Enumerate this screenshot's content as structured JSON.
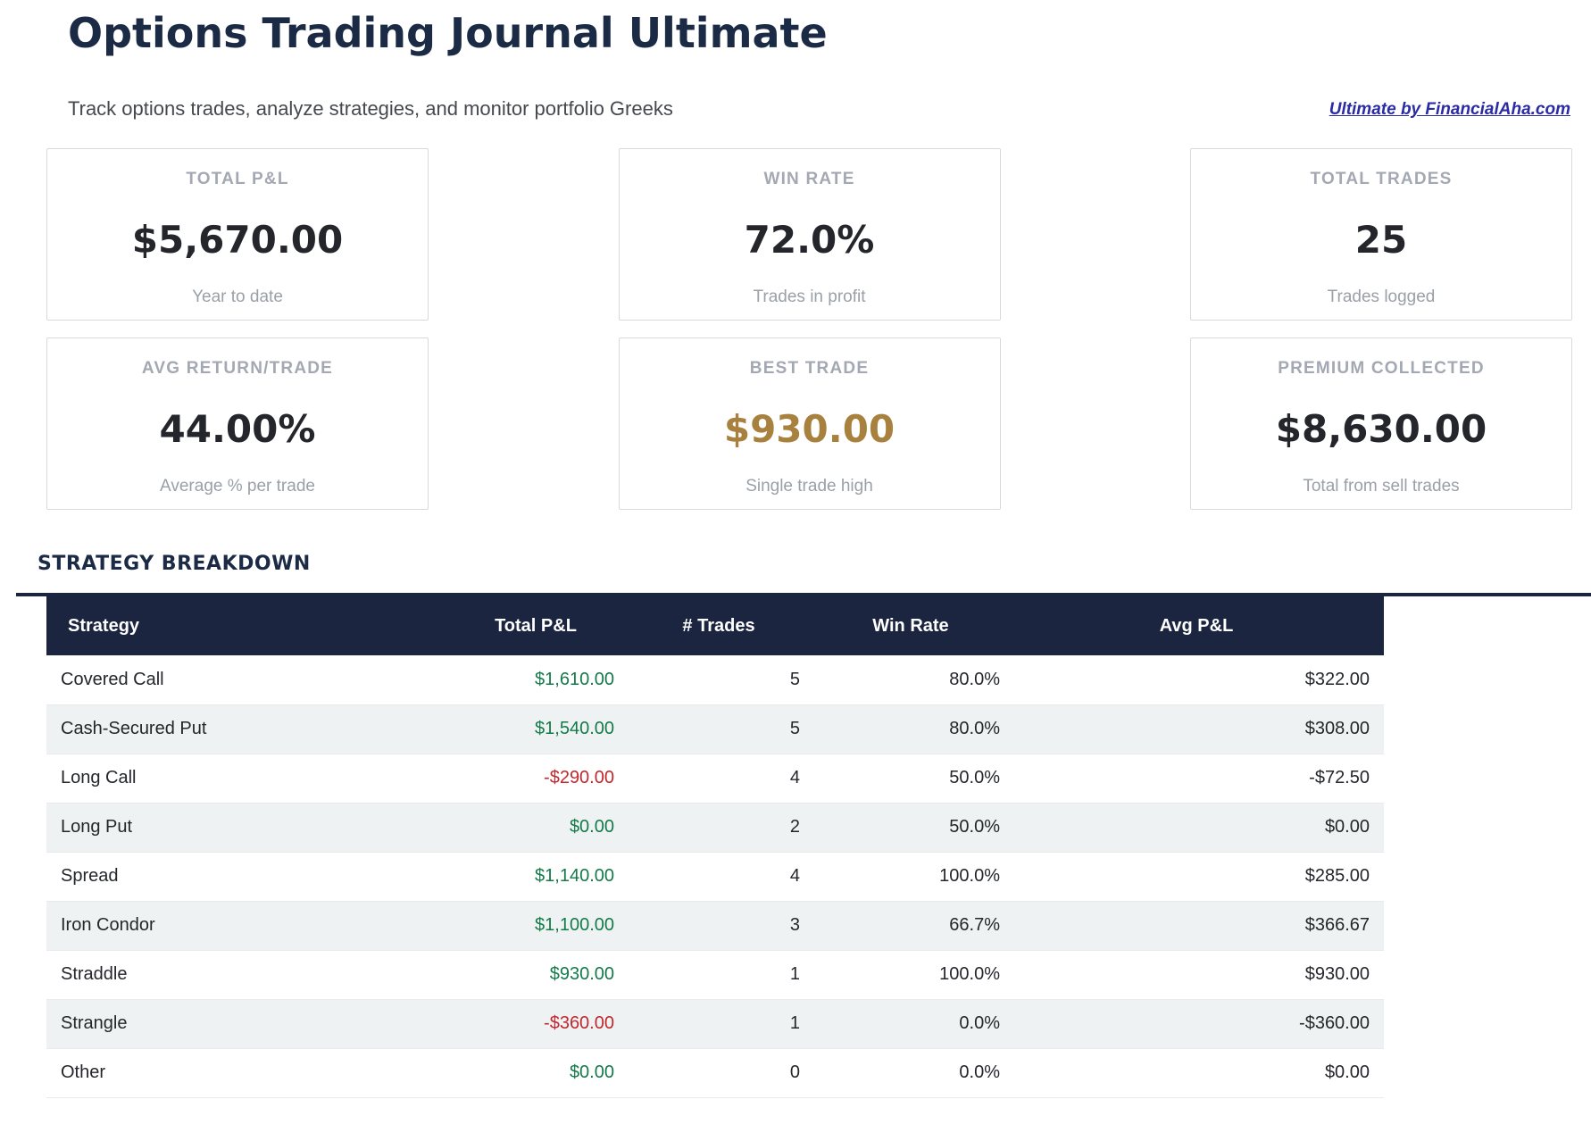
{
  "colors": {
    "navy": "#1b2540",
    "title_navy": "#1c2b45",
    "subtitle_gray": "#45494f",
    "link_blue": "#2b2ba3",
    "gold": "#a8813f",
    "green": "#147a4a",
    "red": "#c0282d",
    "row_alt": "#eff2f3",
    "border_light": "#e8ebec",
    "card_border": "#d7dadd",
    "label_gray": "#a3a8b2",
    "sub_gray": "#9aa0a8",
    "text_dark": "#24262b"
  },
  "header": {
    "title": "Options Trading Journal Ultimate",
    "subtitle": "Track options trades, analyze strategies, and monitor portfolio Greeks",
    "link": "Ultimate by FinancialAha.com"
  },
  "stats": [
    {
      "label": "TOTAL P&L",
      "value": "$5,670.00",
      "sublabel": "Year to date",
      "value_color": "dark"
    },
    {
      "label": "WIN RATE",
      "value": "72.0%",
      "sublabel": "Trades in profit",
      "value_color": "dark"
    },
    {
      "label": "TOTAL TRADES",
      "value": "25",
      "sublabel": "Trades logged",
      "value_color": "dark"
    },
    {
      "label": "AVG RETURN/TRADE",
      "value": "44.00%",
      "sublabel": "Average % per trade",
      "value_color": "dark"
    },
    {
      "label": "BEST TRADE",
      "value": "$930.00",
      "sublabel": "Single trade high",
      "value_color": "gold"
    },
    {
      "label": "PREMIUM COLLECTED",
      "value": "$8,630.00",
      "sublabel": "Total from sell trades",
      "value_color": "dark"
    }
  ],
  "strategy_section": {
    "heading": "STRATEGY BREAKDOWN",
    "columns": [
      "Strategy",
      "Total P&L",
      "# Trades",
      "Win Rate",
      "Avg P&L"
    ],
    "rows": [
      {
        "strategy": "Covered Call",
        "total_pnl": "$1,610.00",
        "pnl_color": "green",
        "trades": "5",
        "win_rate": "80.0%",
        "avg_pnl": "$322.00"
      },
      {
        "strategy": "Cash-Secured Put",
        "total_pnl": "$1,540.00",
        "pnl_color": "green",
        "trades": "5",
        "win_rate": "80.0%",
        "avg_pnl": "$308.00"
      },
      {
        "strategy": "Long Call",
        "total_pnl": "-$290.00",
        "pnl_color": "red",
        "trades": "4",
        "win_rate": "50.0%",
        "avg_pnl": "-$72.50"
      },
      {
        "strategy": "Long Put",
        "total_pnl": "$0.00",
        "pnl_color": "green",
        "trades": "2",
        "win_rate": "50.0%",
        "avg_pnl": "$0.00"
      },
      {
        "strategy": "Spread",
        "total_pnl": "$1,140.00",
        "pnl_color": "green",
        "trades": "4",
        "win_rate": "100.0%",
        "avg_pnl": "$285.00"
      },
      {
        "strategy": "Iron Condor",
        "total_pnl": "$1,100.00",
        "pnl_color": "green",
        "trades": "3",
        "win_rate": "66.7%",
        "avg_pnl": "$366.67"
      },
      {
        "strategy": "Straddle",
        "total_pnl": "$930.00",
        "pnl_color": "green",
        "trades": "1",
        "win_rate": "100.0%",
        "avg_pnl": "$930.00"
      },
      {
        "strategy": "Strangle",
        "total_pnl": "-$360.00",
        "pnl_color": "red",
        "trades": "1",
        "win_rate": "0.0%",
        "avg_pnl": "-$360.00"
      },
      {
        "strategy": "Other",
        "total_pnl": "$0.00",
        "pnl_color": "green",
        "trades": "0",
        "win_rate": "0.0%",
        "avg_pnl": "$0.00"
      }
    ]
  }
}
